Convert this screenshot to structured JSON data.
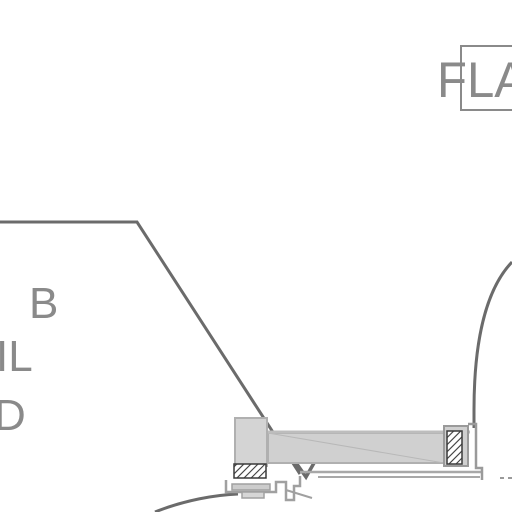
{
  "drawing": {
    "labels": {
      "top_right": "FLA",
      "left_1": "B",
      "left_2": "IL",
      "left_3": "D"
    },
    "colors": {
      "background": "#ffffff",
      "leader_line": "#6b6b6b",
      "text": "#8a8a8a",
      "frame_fill": "#cfcfcf",
      "frame_stroke": "#a8a8a8",
      "hatch": "#3a3a3a"
    }
  }
}
